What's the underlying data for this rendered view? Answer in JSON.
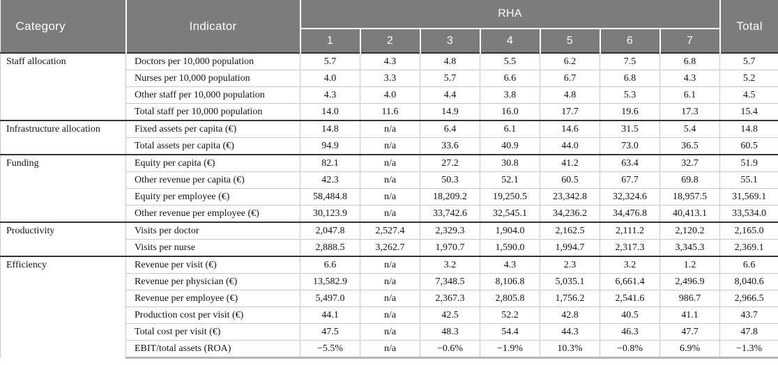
{
  "header": {
    "category": "Category",
    "indicator": "Indicator",
    "rha": "RHA",
    "total": "Total",
    "rha_columns": [
      "1",
      "2",
      "3",
      "4",
      "5",
      "6",
      "7"
    ]
  },
  "groups": [
    {
      "category": "Staff allocation",
      "rows": [
        {
          "indicator": "Doctors per 10,000 population",
          "values": [
            "5.7",
            "4.3",
            "4.8",
            "5.5",
            "6.2",
            "7.5",
            "6.8"
          ],
          "total": "5.7"
        },
        {
          "indicator": "Nurses per 10,000 population",
          "values": [
            "4.0",
            "3.3",
            "5.7",
            "6.6",
            "6.7",
            "6.8",
            "4.3"
          ],
          "total": "5.2"
        },
        {
          "indicator": "Other staff per 10,000 population",
          "values": [
            "4.3",
            "4.0",
            "4.4",
            "3.8",
            "4.8",
            "5.3",
            "6.1"
          ],
          "total": "4.5"
        },
        {
          "indicator": "Total staff per 10,000 population",
          "values": [
            "14.0",
            "11.6",
            "14.9",
            "16.0",
            "17.7",
            "19.6",
            "17.3"
          ],
          "total": "15.4"
        }
      ]
    },
    {
      "category": "Infrastructure allocation",
      "rows": [
        {
          "indicator": "Fixed assets per capita (€)",
          "values": [
            "14.8",
            "n/a",
            "6.4",
            "6.1",
            "14.6",
            "31.5",
            "5.4"
          ],
          "total": "14.8"
        },
        {
          "indicator": "Total assets per capita (€)",
          "values": [
            "94.9",
            "n/a",
            "33.6",
            "40.9",
            "44.0",
            "73.0",
            "36.5"
          ],
          "total": "60.5"
        }
      ]
    },
    {
      "category": "Funding",
      "rows": [
        {
          "indicator": "Equity per capita (€)",
          "values": [
            "82.1",
            "n/a",
            "27.2",
            "30.8",
            "41.2",
            "63.4",
            "32.7"
          ],
          "total": "51.9"
        },
        {
          "indicator": "Other revenue per capita (€)",
          "values": [
            "42.3",
            "n/a",
            "50.3",
            "52.1",
            "60.5",
            "67.7",
            "69.8"
          ],
          "total": "55.1"
        },
        {
          "indicator": "Equity per employee (€)",
          "values": [
            "58,484.8",
            "n/a",
            "18,209.2",
            "19,250.5",
            "23,342.8",
            "32,324.6",
            "18,957.5"
          ],
          "total": "31,569.1"
        },
        {
          "indicator": "Other revenue per employee (€)",
          "values": [
            "30,123.9",
            "n/a",
            "33,742.6",
            "32,545.1",
            "34,236.2",
            "34,476.8",
            "40,413.1"
          ],
          "total": "33,534.0"
        }
      ]
    },
    {
      "category": "Productivity",
      "rows": [
        {
          "indicator": "Visits per doctor",
          "values": [
            "2,047.8",
            "2,527.4",
            "2,329.3",
            "1,904.0",
            "2,162.5",
            "2,111.2",
            "2,120.2"
          ],
          "total": "2,165.0"
        },
        {
          "indicator": "Visits per nurse",
          "values": [
            "2,888.5",
            "3,262.7",
            "1,970.7",
            "1,590.0",
            "1,994.7",
            "2,317.3",
            "3,345.3"
          ],
          "total": "2,369.1"
        }
      ]
    },
    {
      "category": "Efficiency",
      "rows": [
        {
          "indicator": "Revenue per visit (€)",
          "values": [
            "6.6",
            "n/a",
            "3.2",
            "4.3",
            "2.3",
            "3.2",
            "1.2"
          ],
          "total": "6.6"
        },
        {
          "indicator": "Revenue per physician (€)",
          "values": [
            "13,582.9",
            "n/a",
            "7,348.5",
            "8,106.8",
            "5,035.1",
            "6,661.4",
            "2,496.9"
          ],
          "total": "8,040.6"
        },
        {
          "indicator": "Revenue per employee (€)",
          "values": [
            "5,497.0",
            "n/a",
            "2,367.3",
            "2,805.8",
            "1,756.2",
            "2,541.6",
            "986.7"
          ],
          "total": "2,966.5"
        },
        {
          "indicator": "Production cost per visit (€)",
          "values": [
            "44.1",
            "n/a",
            "42.5",
            "52.2",
            "42.8",
            "40.5",
            "41.1"
          ],
          "total": "43.7"
        },
        {
          "indicator": "Total cost per visit (€)",
          "values": [
            "47.5",
            "n/a",
            "48.3",
            "54.4",
            "44.3",
            "46.3",
            "47.7"
          ],
          "total": "47.8"
        },
        {
          "indicator": "EBIT/total assets (ROA)",
          "values": [
            "−5.5%",
            "n/a",
            "−0.6%",
            "−1.9%",
            "10.3%",
            "−0.8%",
            "6.9%"
          ],
          "total": "−1.3%"
        }
      ]
    }
  ],
  "colors": {
    "header_bg": "#7c7c7c",
    "header_text": "#ffffff",
    "grid_light": "#c9c9c9",
    "group_divider": "#333333",
    "bottom_border": "#b5b5b5"
  }
}
